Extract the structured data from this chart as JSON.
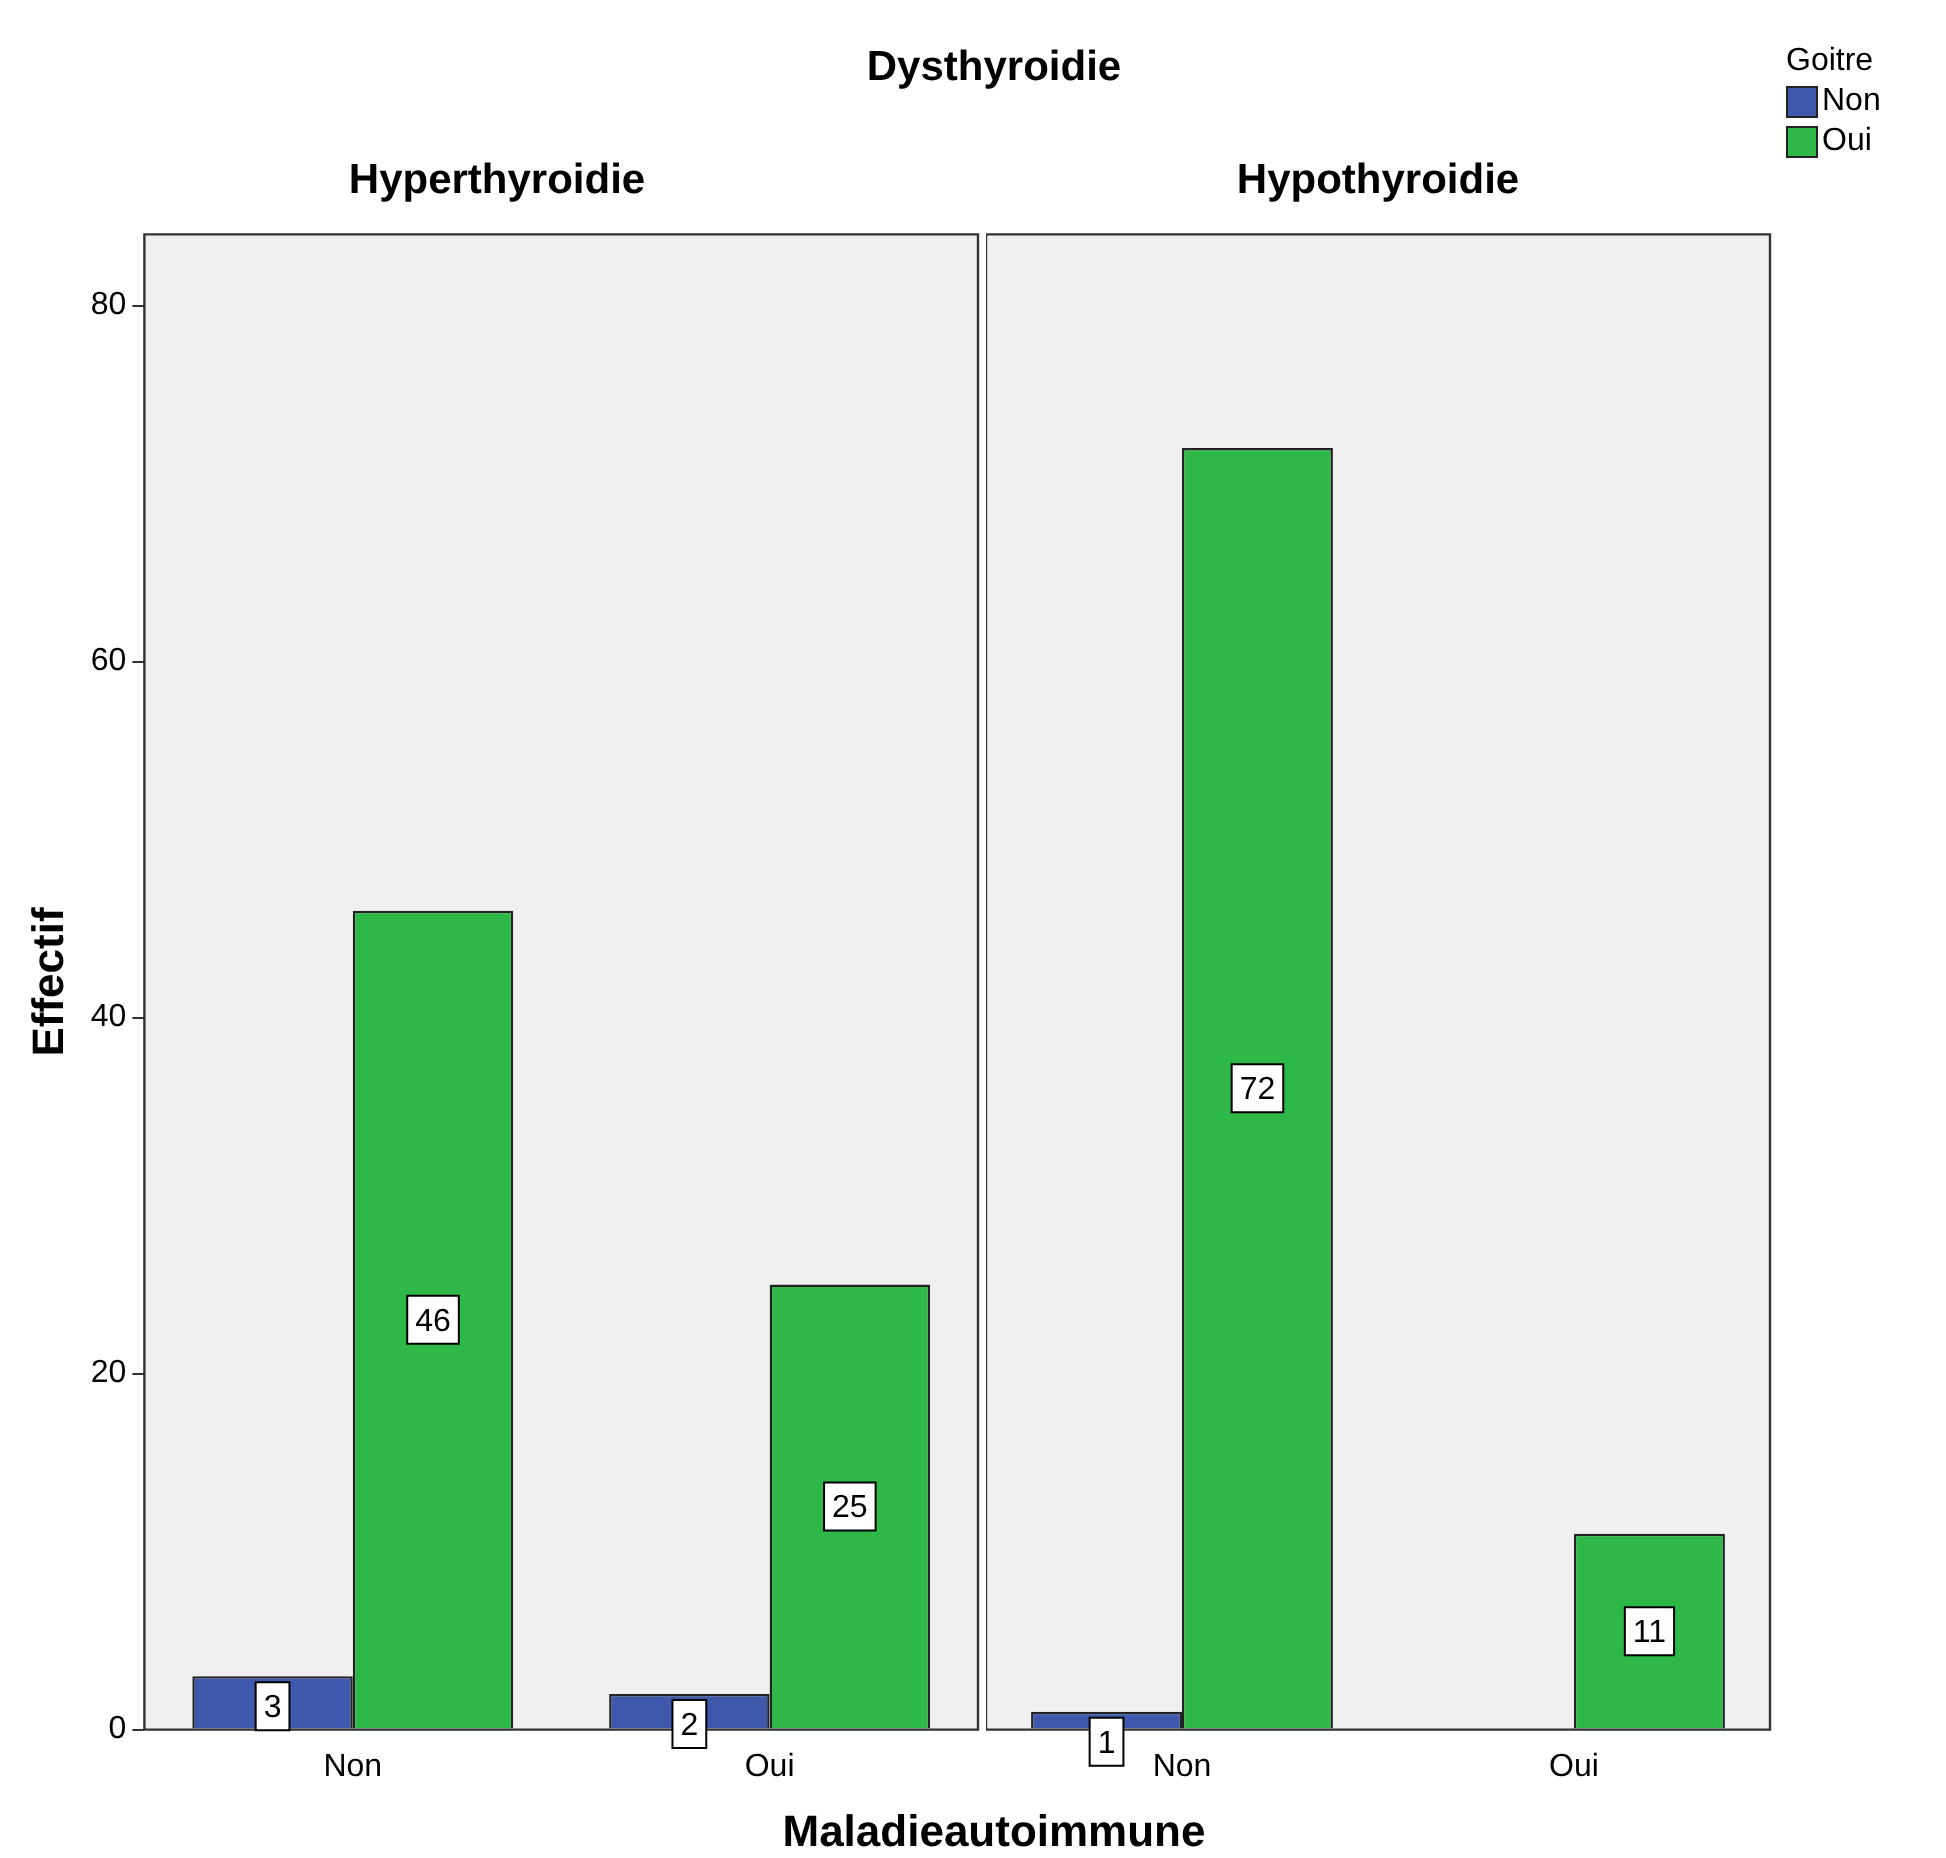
{
  "chart_data": [
    {
      "type": "bar",
      "title": "Hyperthyroidie",
      "annotations": [
        "Dysthyroidie"
      ],
      "legend_title": "Goitre",
      "legend": "top right",
      "xlabel": "Maladieautoimmune",
      "ylabel": "Effectif",
      "categories": [
        "Non",
        "Oui"
      ],
      "series": [
        {
          "name": "Non",
          "color": "#3e58ac",
          "values": [
            3,
            2
          ]
        },
        {
          "name": "Oui",
          "color": "#2eb848",
          "values": [
            46,
            25
          ]
        }
      ],
      "ylim": [
        0,
        84
      ],
      "yticks": [
        0,
        20,
        40,
        60,
        80
      ],
      "grid": false,
      "data_labels": true
    },
    {
      "type": "bar",
      "title": "Hypothyroidie",
      "categories": [
        "Non",
        "Oui"
      ],
      "series": [
        {
          "color": "#3e58ac",
          "values": [
            1,
            null
          ]
        },
        {
          "color": "#2eb848",
          "values": [
            72,
            11
          ]
        }
      ],
      "ylim": [
        0,
        84
      ],
      "yticks": [
        0,
        20,
        40,
        60,
        80
      ],
      "grid": false,
      "tick_labels": "x",
      "data_labels": true
    }
  ]
}
